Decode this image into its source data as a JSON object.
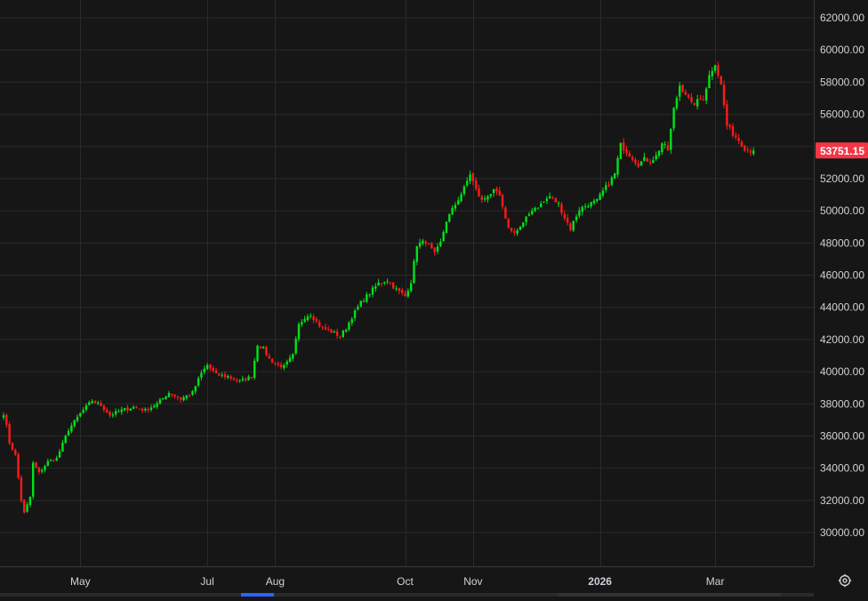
{
  "colors": {
    "background": "#161616",
    "grid": "#2a2a2a",
    "axis_line": "#3a3a3a",
    "axis_text": "#cfd2d8",
    "up": "#00e21a",
    "down": "#ff1a1a",
    "price_badge": "#f23645",
    "price_badge_text": "#ffffff",
    "scrollbar": "#2a2a2a",
    "scrollbar_accent": "#2962ff"
  },
  "chart_data": {
    "type": "candlestick",
    "title": "",
    "ylim": [
      27800,
      63000
    ],
    "y_ticks": [
      "62000.00",
      "60000.00",
      "58000.00",
      "56000.00",
      "54000.00",
      "52000.00",
      "50000.00",
      "48000.00",
      "46000.00",
      "44000.00",
      "42000.00",
      "40000.00",
      "38000.00",
      "36000.00",
      "34000.00",
      "32000.00",
      "30000.00"
    ],
    "y_tick_values": [
      62000,
      60000,
      58000,
      56000,
      54000,
      52000,
      50000,
      48000,
      46000,
      44000,
      42000,
      40000,
      38000,
      36000,
      34000,
      32000,
      30000
    ],
    "x_ticks": [
      {
        "label": "May",
        "index": 26,
        "bold": false
      },
      {
        "label": "Jul",
        "index": 69,
        "bold": false
      },
      {
        "label": "Aug",
        "index": 92,
        "bold": false
      },
      {
        "label": "Oct",
        "index": 136,
        "bold": false
      },
      {
        "label": "Nov",
        "index": 159,
        "bold": false
      },
      {
        "label": "2026",
        "index": 202,
        "bold": true
      },
      {
        "label": "Mar",
        "index": 241,
        "bold": false
      }
    ],
    "last_price": {
      "value": 53751.15,
      "label": "53751.15"
    },
    "anchors": [
      [
        0,
        37400
      ],
      [
        1,
        36600
      ],
      [
        2,
        35600
      ],
      [
        4,
        34800
      ],
      [
        6,
        32000
      ],
      [
        7,
        31200
      ],
      [
        9,
        32200
      ],
      [
        10,
        34300
      ],
      [
        12,
        33700
      ],
      [
        15,
        34400
      ],
      [
        18,
        34600
      ],
      [
        22,
        36400
      ],
      [
        26,
        37400
      ],
      [
        30,
        38200
      ],
      [
        33,
        37900
      ],
      [
        36,
        37300
      ],
      [
        40,
        37600
      ],
      [
        44,
        37800
      ],
      [
        48,
        37600
      ],
      [
        52,
        38000
      ],
      [
        56,
        38700
      ],
      [
        60,
        38300
      ],
      [
        64,
        38700
      ],
      [
        67,
        39900
      ],
      [
        69,
        40400
      ],
      [
        72,
        39800
      ],
      [
        76,
        39700
      ],
      [
        80,
        39400
      ],
      [
        84,
        39700
      ],
      [
        86,
        41700
      ],
      [
        88,
        41400
      ],
      [
        90,
        40800
      ],
      [
        92,
        40500
      ],
      [
        95,
        40300
      ],
      [
        98,
        41000
      ],
      [
        100,
        42900
      ],
      [
        102,
        43400
      ],
      [
        104,
        43600
      ],
      [
        106,
        43100
      ],
      [
        108,
        42700
      ],
      [
        111,
        42500
      ],
      [
        114,
        42200
      ],
      [
        116,
        42700
      ],
      [
        118,
        43400
      ],
      [
        121,
        44300
      ],
      [
        124,
        44900
      ],
      [
        127,
        45500
      ],
      [
        130,
        45700
      ],
      [
        133,
        45100
      ],
      [
        136,
        44700
      ],
      [
        138,
        45600
      ],
      [
        140,
        47900
      ],
      [
        143,
        48100
      ],
      [
        146,
        47300
      ],
      [
        148,
        48000
      ],
      [
        150,
        49400
      ],
      [
        153,
        50400
      ],
      [
        156,
        51400
      ],
      [
        158,
        52300
      ],
      [
        160,
        51300
      ],
      [
        162,
        50600
      ],
      [
        164,
        51000
      ],
      [
        166,
        51200
      ],
      [
        168,
        50900
      ],
      [
        170,
        49400
      ],
      [
        172,
        48700
      ],
      [
        174,
        48800
      ],
      [
        176,
        49200
      ],
      [
        179,
        50100
      ],
      [
        182,
        50400
      ],
      [
        185,
        50900
      ],
      [
        188,
        50400
      ],
      [
        190,
        49600
      ],
      [
        192,
        48900
      ],
      [
        195,
        50100
      ],
      [
        198,
        50400
      ],
      [
        201,
        50600
      ],
      [
        203,
        51200
      ],
      [
        205,
        51700
      ],
      [
        207,
        52300
      ],
      [
        209,
        54100
      ],
      [
        211,
        53700
      ],
      [
        213,
        53300
      ],
      [
        215,
        52900
      ],
      [
        217,
        53200
      ],
      [
        219,
        53100
      ],
      [
        221,
        53400
      ],
      [
        223,
        54200
      ],
      [
        225,
        53800
      ],
      [
        227,
        56300
      ],
      [
        229,
        57800
      ],
      [
        231,
        57300
      ],
      [
        233,
        56600
      ],
      [
        235,
        56800
      ],
      [
        237,
        57000
      ],
      [
        239,
        58400
      ],
      [
        241,
        59200
      ],
      [
        243,
        57800
      ],
      [
        245,
        55300
      ],
      [
        247,
        54800
      ],
      [
        249,
        54400
      ],
      [
        251,
        53900
      ],
      [
        253,
        53751.15
      ]
    ],
    "candle_count": 255,
    "candle_spacing": 3.32,
    "first_x": 4,
    "random_seed": 7
  },
  "settings": {
    "icon": "settings-icon"
  }
}
